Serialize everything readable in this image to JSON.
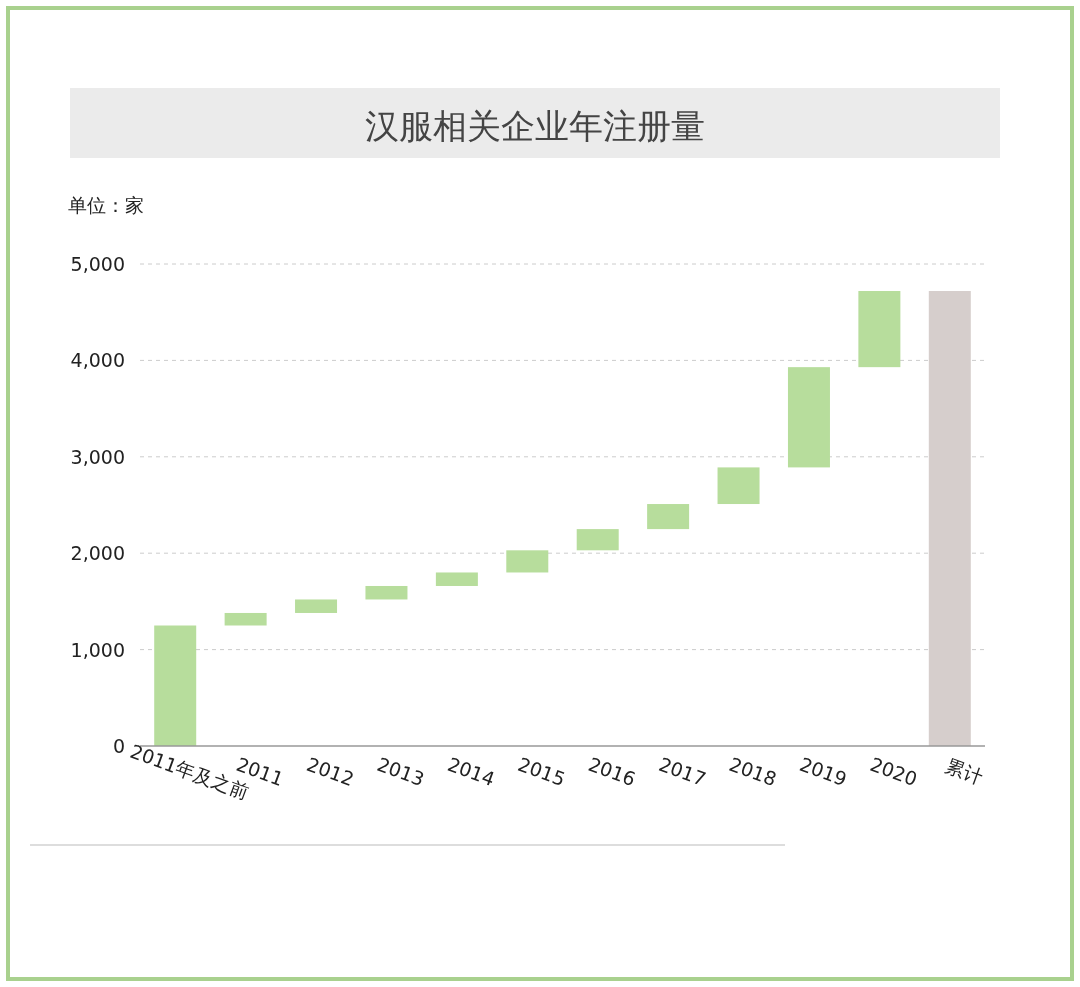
{
  "chart_data": {
    "type": "bar",
    "title": "汉服相关企业年注册量",
    "ylabel": "单位：家",
    "categories": [
      "2011年及之前",
      "2011",
      "2012",
      "2013",
      "2014",
      "2015",
      "2016",
      "2017",
      "2018",
      "2019",
      "2020",
      "累计"
    ],
    "values": [
      1250,
      130,
      140,
      140,
      140,
      230,
      220,
      260,
      380,
      1040,
      790,
      4720
    ],
    "base": [
      0,
      1250,
      1380,
      1520,
      1660,
      1800,
      2030,
      2250,
      2510,
      2890,
      3930,
      0
    ],
    "colors": [
      "#b7dd9c",
      "#b7dd9c",
      "#b7dd9c",
      "#b7dd9c",
      "#b7dd9c",
      "#b7dd9c",
      "#b7dd9c",
      "#b7dd9c",
      "#b7dd9c",
      "#b7dd9c",
      "#b7dd9c",
      "#d6cecc"
    ],
    "ylim": [
      0,
      5000
    ],
    "yticks": [
      0,
      {
        "value": 1000,
        "label": "1,000"
      },
      {
        "value": 2000,
        "label": "2,000"
      },
      {
        "value": 3000,
        "label": "3,000"
      },
      {
        "value": 4000,
        "label": "4,000"
      },
      {
        "value": 5000,
        "label": "5,000"
      }
    ],
    "grid": "y"
  }
}
